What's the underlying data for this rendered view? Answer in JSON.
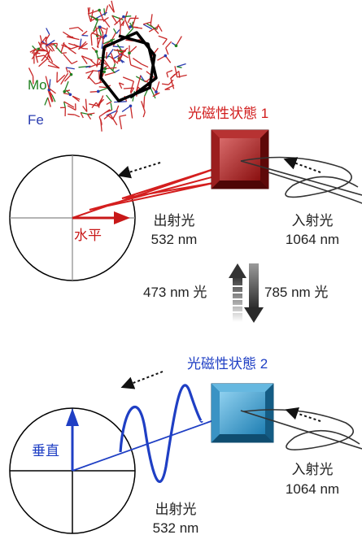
{
  "crystal_labels": {
    "mo": "Mo",
    "fe": "Fe"
  },
  "state1": {
    "title": "光磁性状態 1",
    "output_label": "出射光",
    "output_wavelength": "532 nm",
    "input_label": "入射光",
    "input_wavelength": "1064 nm",
    "polarization": "水平"
  },
  "switching": {
    "forward_wavelength": "473 nm 光",
    "reverse_wavelength": "785 nm 光"
  },
  "state2": {
    "title": "光磁性状態 2",
    "output_label": "出射光",
    "output_wavelength": "532 nm",
    "input_label": "入射光",
    "input_wavelength": "1064 nm",
    "polarization": "垂直"
  },
  "colors": {
    "state1_accent": "#c81818",
    "state2_accent": "#1f3fc4",
    "mo_label": "#208020",
    "fe_label": "#2a3cb0"
  }
}
